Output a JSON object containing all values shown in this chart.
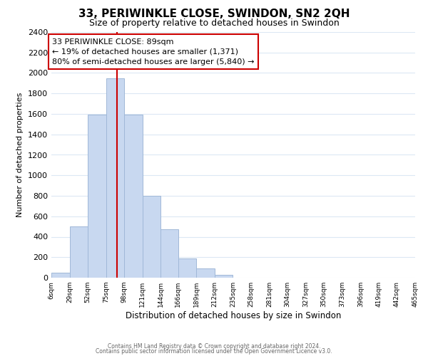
{
  "title": "33, PERIWINKLE CLOSE, SWINDON, SN2 2QH",
  "subtitle": "Size of property relative to detached houses in Swindon",
  "xlabel": "Distribution of detached houses by size in Swindon",
  "ylabel": "Number of detached properties",
  "bar_edges": [
    6,
    29,
    52,
    75,
    98,
    121,
    144,
    166,
    189,
    212,
    235,
    258,
    281,
    304,
    327,
    350,
    373,
    396,
    419,
    442,
    465
  ],
  "bar_heights": [
    50,
    500,
    1590,
    1950,
    1590,
    800,
    470,
    185,
    90,
    30,
    0,
    0,
    0,
    0,
    0,
    0,
    0,
    0,
    0,
    0
  ],
  "bar_color": "#c8d8f0",
  "bar_edgecolor": "#a0b8d8",
  "property_line_x": 89,
  "property_line_color": "#cc0000",
  "annotation_line1": "33 PERIWINKLE CLOSE: 89sqm",
  "annotation_line2": "← 19% of detached houses are smaller (1,371)",
  "annotation_line3": "80% of semi-detached houses are larger (5,840) →",
  "annotation_box_color": "#ffffff",
  "annotation_box_edgecolor": "#cc0000",
  "ylim": [
    0,
    2400
  ],
  "yticks": [
    0,
    200,
    400,
    600,
    800,
    1000,
    1200,
    1400,
    1600,
    1800,
    2000,
    2200,
    2400
  ],
  "xtick_labels": [
    "6sqm",
    "29sqm",
    "52sqm",
    "75sqm",
    "98sqm",
    "121sqm",
    "144sqm",
    "166sqm",
    "189sqm",
    "212sqm",
    "235sqm",
    "258sqm",
    "281sqm",
    "304sqm",
    "327sqm",
    "350sqm",
    "373sqm",
    "396sqm",
    "419sqm",
    "442sqm",
    "465sqm"
  ],
  "footer_line1": "Contains HM Land Registry data © Crown copyright and database right 2024.",
  "footer_line2": "Contains public sector information licensed under the Open Government Licence v3.0.",
  "background_color": "#ffffff",
  "grid_color": "#dce8f4",
  "title_fontsize": 11,
  "subtitle_fontsize": 9,
  "annotation_fontsize": 8,
  "ylabel_fontsize": 8,
  "xlabel_fontsize": 8.5
}
